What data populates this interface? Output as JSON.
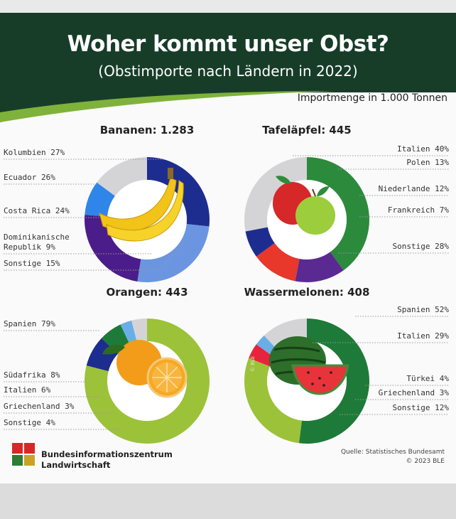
{
  "header": {
    "title": "Woher kommt unser Obst?",
    "subtitle": "(Obstimporte nach Ländern in 2022)",
    "unit_note": "Importmenge in 1.000 Tonnen"
  },
  "chart_data": [
    {
      "type": "pie",
      "title": "Bananen: 1.283",
      "labels": [
        "Kolumbien 27%",
        "Ecuador 26%",
        "Costa Rica 24%",
        "Dominikanische Republik 9%",
        "Sonstige 15%"
      ],
      "categories": [
        "Kolumbien",
        "Ecuador",
        "Costa Rica",
        "Dominikanische Republik",
        "Sonstige"
      ],
      "values": [
        27,
        26,
        24,
        9,
        15
      ],
      "colors": [
        "#1d2d8f",
        "#6b95e0",
        "#4b1d8a",
        "#2f86e8",
        "#d4d4d6"
      ]
    },
    {
      "type": "pie",
      "title": "Tafeläpfel: 445",
      "labels": [
        "Italien 40%",
        "Polen 13%",
        "Niederlande 12%",
        "Frankreich 7%",
        "Sonstige 28%"
      ],
      "categories": [
        "Italien",
        "Polen",
        "Niederlande",
        "Frankreich",
        "Sonstige"
      ],
      "values": [
        40,
        13,
        12,
        7,
        28
      ],
      "colors": [
        "#2c8a3c",
        "#5a2a92",
        "#e8372b",
        "#1d2d8f",
        "#d4d4d6"
      ]
    },
    {
      "type": "pie",
      "title": "Orangen: 443",
      "labels": [
        "Spanien 79%",
        "Südafrika 8%",
        "Italien 6%",
        "Griechenland 3%",
        "Sonstige 4%"
      ],
      "categories": [
        "Spanien",
        "Südafrika",
        "Italien",
        "Griechenland",
        "Sonstige"
      ],
      "values": [
        79,
        8,
        6,
        3,
        4
      ],
      "colors": [
        "#9cc23a",
        "#1d2d8f",
        "#1e7a38",
        "#6aaee8",
        "#d4d4d6"
      ]
    },
    {
      "type": "pie",
      "title": "Wassermelonen: 408",
      "labels": [
        "Spanien 52%",
        "Italien 29%",
        "Türkei 4%",
        "Griechenland 3%",
        "Sonstige 12%"
      ],
      "categories": [
        "Spanien",
        "Italien",
        "Türkei",
        "Griechenland",
        "Sonstige"
      ],
      "values": [
        52,
        29,
        4,
        3,
        12
      ],
      "colors": [
        "#1e7a38",
        "#9cc23a",
        "#e8233b",
        "#6aaee8",
        "#d4d4d6"
      ]
    }
  ],
  "watermark": "© BLE",
  "footer": {
    "org_line1": "Bundesinformationszentrum",
    "org_line2": "Landwirtschaft",
    "source": "Quelle: Statistisches Bundesamt",
    "copyright": "© 2023 BLE"
  }
}
